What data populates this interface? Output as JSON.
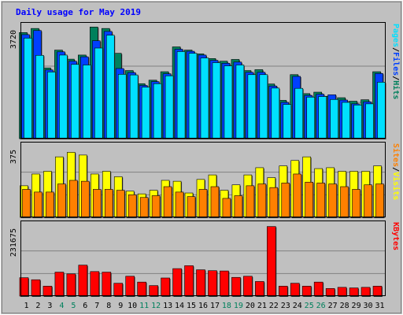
{
  "chart_data": {
    "type": "bar",
    "title": "Daily usage for May 2019",
    "categories": [
      "1",
      "2",
      "3",
      "4",
      "5",
      "6",
      "7",
      "8",
      "9",
      "10",
      "11",
      "12",
      "13",
      "14",
      "15",
      "16",
      "17",
      "18",
      "19",
      "20",
      "21",
      "22",
      "23",
      "24",
      "25",
      "26",
      "27",
      "28",
      "29",
      "30",
      "31"
    ],
    "weekend_days": [
      "4",
      "5",
      "11",
      "12",
      "18",
      "19",
      "25",
      "26"
    ],
    "colors": {
      "hits": "#00805c",
      "files": "#0040ff",
      "pages": "#00e0ff",
      "visits": "#ffff00",
      "sites": "#ff8000",
      "kbytes": "#ff0000",
      "title": "#0000ff",
      "weekday_label": "#000000",
      "weekend_label": "#00805c",
      "background": "#c0c0c0",
      "frame": "#d0d0d0"
    },
    "panels": [
      {
        "id": "hits_files_pages",
        "tick_label": "3720",
        "ymax": 3720,
        "legend": [
          {
            "text": "Pages",
            "color": "#00e0ff"
          },
          {
            "text": "/",
            "color": "#000000"
          },
          {
            "text": "Files",
            "color": "#0040ff"
          },
          {
            "text": "/",
            "color": "#000000"
          },
          {
            "text": "Hits",
            "color": "#00805c"
          }
        ],
        "series": [
          {
            "name": "Hits",
            "color": "#00805c",
            "values": [
              3630,
              3770,
              2420,
              3030,
              2720,
              2860,
              3820,
              3770,
              2920,
              2330,
              1880,
              2000,
              2290,
              3140,
              3030,
              2900,
              2740,
              2650,
              2710,
              2330,
              2360,
              1870,
              1310,
              2190,
              1540,
              1590,
              1450,
              1400,
              1280,
              1330,
              2290
            ]
          },
          {
            "name": "Files",
            "color": "#0040ff",
            "values": [
              3560,
              3700,
              2350,
              2970,
              2650,
              2800,
              3350,
              3670,
              2400,
              2260,
              1820,
              1950,
              2220,
              3060,
              2990,
              2860,
              2680,
              2580,
              2620,
              2270,
              2270,
              1800,
              1240,
              2130,
              1480,
              1520,
              1500,
              1320,
              1190,
              1260,
              2230
            ]
          },
          {
            "name": "Pages",
            "color": "#00e0ff",
            "values": [
              3440,
              2850,
              2280,
              2860,
              2540,
              2520,
              3100,
              3540,
              2200,
              2180,
              1760,
              1880,
              2150,
              2980,
              2920,
              2760,
              2600,
              2490,
              2520,
              2190,
              2190,
              1730,
              1170,
              1720,
              1420,
              1440,
              1340,
              1240,
              1150,
              1190,
              1930
            ]
          }
        ]
      },
      {
        "id": "visits_sites",
        "tick_label": "375",
        "ymax": 375,
        "legend": [
          {
            "text": "Sites",
            "color": "#ff8000"
          },
          {
            "text": "/",
            "color": "#000000"
          },
          {
            "text": "Visits",
            "color": "#ffff00"
          }
        ],
        "series": [
          {
            "name": "Visits",
            "color": "#ffff00",
            "values": [
              175,
              240,
              255,
              335,
              360,
              345,
              240,
              255,
              225,
              145,
              130,
              150,
              205,
              200,
              135,
              210,
              235,
              150,
              180,
              235,
              275,
              220,
              285,
              315,
              335,
              270,
              275,
              255,
              255,
              255,
              285
            ]
          },
          {
            "name": "Sites",
            "color": "#ff8000",
            "values": [
              155,
              140,
              140,
              185,
              205,
              200,
              155,
              155,
              150,
              125,
              110,
              120,
              170,
              140,
              115,
              155,
              170,
              105,
              120,
              175,
              185,
              165,
              190,
              240,
              195,
              190,
              185,
              170,
              155,
              180,
              185
            ]
          }
        ]
      },
      {
        "id": "kbytes",
        "tick_label": "231675",
        "ymax": 231675,
        "legend": [
          {
            "text": "KBytes",
            "color": "#ff0000"
          }
        ],
        "series": [
          {
            "name": "KBytes",
            "color": "#ff0000",
            "values": [
              63000,
              56000,
              34000,
              82000,
              76000,
              106000,
              84000,
              82000,
              44000,
              68000,
              48000,
              36000,
              62000,
              94000,
              104000,
              90000,
              87000,
              86000,
              64000,
              68000,
              50000,
              238000,
              34000,
              44000,
              34000,
              48000,
              26000,
              30000,
              28000,
              30000,
              34000
            ]
          }
        ]
      }
    ]
  }
}
